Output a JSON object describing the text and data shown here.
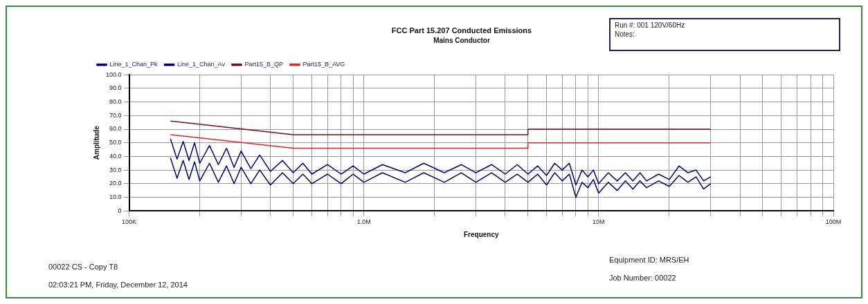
{
  "chart_data": {
    "type": "line",
    "title": "FCC Part 15.207 Conducted Emissions",
    "subtitle": "Mains Conductor",
    "xlabel": "Frequency",
    "ylabel": "Amplitude",
    "annotations": [
      "Run #: 001     120V/60Hz",
      "Notes:",
      "00022 CS - Copy T8",
      "02:03:21 PM, Friday, December 12, 2014",
      "Equipment ID: MRS/EH",
      "Job Number: 00022"
    ],
    "series": [
      {
        "name": "Line_1_Chan_Pk",
        "color": "#000080",
        "x": [
          150000,
          160000,
          170000,
          180000,
          190000,
          200000,
          220000,
          240000,
          260000,
          280000,
          300000,
          330000,
          360000,
          400000,
          450000,
          500000,
          550000,
          600000,
          700000,
          800000,
          900000,
          1000000,
          1200000,
          1500000,
          1800000,
          2200000,
          2600000,
          3000000,
          3500000,
          4000000,
          4500000,
          5000000,
          5500000,
          6000000,
          6500000,
          7000000,
          7500000,
          8000000,
          8500000,
          9000000,
          9500000,
          10000000,
          11000000,
          12000000,
          13000000,
          14000000,
          15000000,
          16000000,
          18000000,
          20000000,
          22000000,
          24000000,
          26000000,
          28000000,
          30000000
        ],
        "values": [
          53,
          38,
          51,
          37,
          50,
          35,
          48,
          34,
          46,
          32,
          44,
          31,
          41,
          29,
          37,
          28,
          35,
          27,
          34,
          27,
          33,
          27,
          34,
          28,
          35,
          28,
          34,
          28,
          34,
          27,
          34,
          27,
          33,
          26,
          35,
          30,
          35,
          19,
          30,
          25,
          30,
          20,
          28,
          22,
          28,
          22,
          28,
          22,
          27,
          23,
          33,
          28,
          30,
          22,
          25
        ]
      },
      {
        "name": "Line_1_Chan_Av",
        "color": "#00006e",
        "x": [
          150000,
          160000,
          170000,
          180000,
          190000,
          200000,
          220000,
          240000,
          260000,
          280000,
          300000,
          330000,
          360000,
          400000,
          450000,
          500000,
          550000,
          600000,
          700000,
          800000,
          900000,
          1000000,
          1200000,
          1500000,
          1800000,
          2200000,
          2600000,
          3000000,
          3500000,
          4000000,
          4500000,
          5000000,
          5500000,
          6000000,
          6500000,
          7000000,
          7500000,
          8000000,
          8500000,
          9000000,
          9500000,
          10000000,
          11000000,
          12000000,
          13000000,
          14000000,
          15000000,
          16000000,
          18000000,
          20000000,
          22000000,
          24000000,
          26000000,
          28000000,
          30000000
        ],
        "values": [
          39,
          24,
          37,
          23,
          36,
          22,
          35,
          21,
          33,
          20,
          32,
          20,
          30,
          19,
          28,
          20,
          27,
          20,
          27,
          20,
          27,
          21,
          28,
          21,
          28,
          21,
          28,
          21,
          28,
          21,
          27,
          21,
          27,
          19,
          28,
          22,
          27,
          10,
          21,
          17,
          23,
          13,
          21,
          15,
          22,
          16,
          22,
          17,
          22,
          18,
          26,
          21,
          25,
          16,
          20
        ]
      },
      {
        "name": "Part15_B_QP",
        "color": "#7a0a14",
        "x": [
          150000,
          500000,
          5000000,
          5000000,
          30000000
        ],
        "values": [
          66,
          56,
          56,
          60,
          60
        ]
      },
      {
        "name": "Part15_B_AVG",
        "color": "#e8231e",
        "x": [
          150000,
          500000,
          5000000,
          5000000,
          30000000
        ],
        "values": [
          56,
          46,
          46,
          50,
          50
        ]
      }
    ],
    "log": "x",
    "xlim": [
      100000,
      100000000
    ],
    "xticks": [
      {
        "value": 100000,
        "label": "100K"
      },
      {
        "value": 200000,
        "label": null
      },
      {
        "value": 300000,
        "label": null
      },
      {
        "value": 400000,
        "label": null
      },
      {
        "value": 500000,
        "label": null
      },
      {
        "value": 600000,
        "label": null
      },
      {
        "value": 700000,
        "label": null
      },
      {
        "value": 800000,
        "label": null
      },
      {
        "value": 900000,
        "label": null
      },
      {
        "value": 1000000,
        "label": "1.0M"
      },
      {
        "value": 2000000,
        "label": null
      },
      {
        "value": 3000000,
        "label": null
      },
      {
        "value": 4000000,
        "label": null
      },
      {
        "value": 5000000,
        "label": null
      },
      {
        "value": 6000000,
        "label": null
      },
      {
        "value": 7000000,
        "label": null
      },
      {
        "value": 8000000,
        "label": null
      },
      {
        "value": 9000000,
        "label": null
      },
      {
        "value": 10000000,
        "label": "10M"
      },
      {
        "value": 20000000,
        "label": null
      },
      {
        "value": 30000000,
        "label": null
      },
      {
        "value": 40000000,
        "label": null
      },
      {
        "value": 50000000,
        "label": null
      },
      {
        "value": 60000000,
        "label": null
      },
      {
        "value": 70000000,
        "label": null
      },
      {
        "value": 80000000,
        "label": null
      },
      {
        "value": 90000000,
        "label": null
      },
      {
        "value": 100000000,
        "label": "100M"
      }
    ],
    "ylim": [
      0,
      100
    ],
    "yticks": [
      0,
      {
        "value": 10,
        "label": "10.0"
      },
      {
        "value": 20,
        "label": "20.0"
      },
      {
        "value": 30,
        "label": "30.0"
      },
      {
        "value": 40,
        "label": "40.0"
      },
      {
        "value": 50,
        "label": "50.0"
      },
      {
        "value": 60,
        "label": "60.0"
      },
      {
        "value": 70,
        "label": "70.0"
      },
      {
        "value": 80,
        "label": "80.0"
      },
      {
        "value": 90,
        "label": "90.0"
      },
      {
        "value": 100,
        "label": "100.0"
      }
    ],
    "grid": true,
    "legend": "top left",
    "marker": "none",
    "line_style": "solid"
  }
}
